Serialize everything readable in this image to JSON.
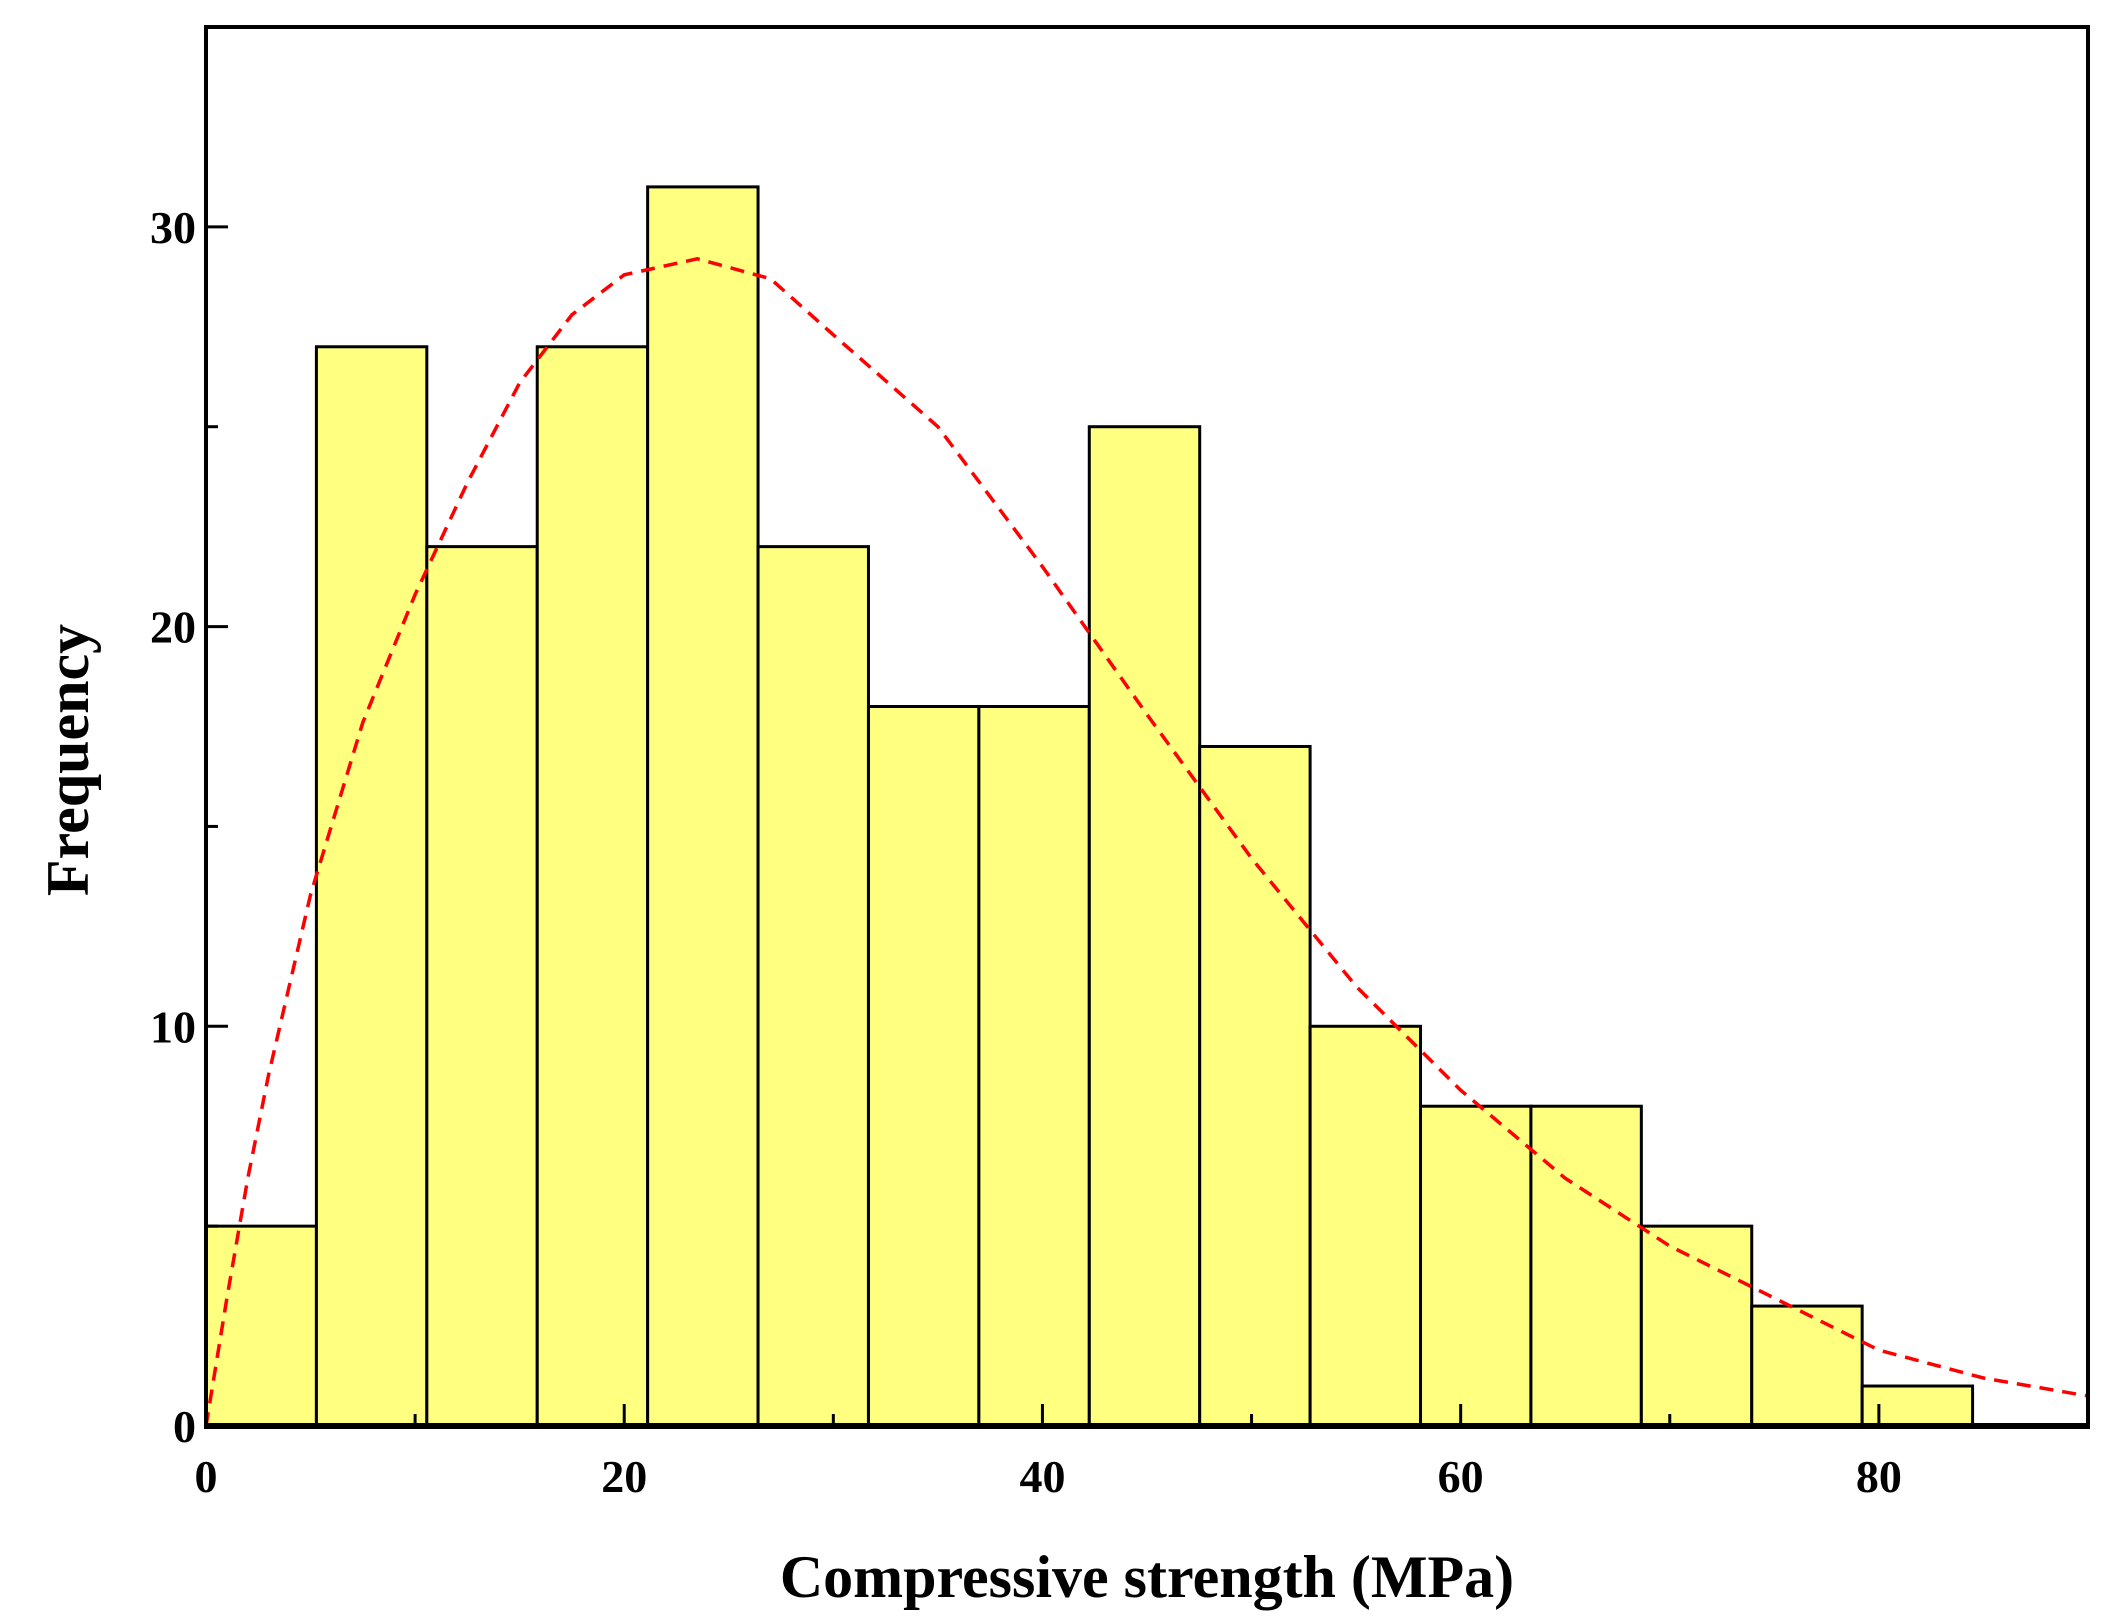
{
  "chart_data": {
    "type": "bar",
    "subtype": "histogram-with-fit",
    "xlabel": "Compressive strength (MPa)",
    "ylabel": "Frequency",
    "xlim": [
      0,
      90
    ],
    "ylim": [
      0,
      35
    ],
    "x_ticks": [
      0,
      20,
      40,
      60,
      80
    ],
    "x_tick_labels": [
      "0",
      "20",
      "40",
      "60",
      "80"
    ],
    "y_ticks": [
      0,
      10,
      20,
      30
    ],
    "y_tick_labels": [
      "0",
      "10",
      "20",
      "30"
    ],
    "bin_start": 0,
    "bin_width": 5.28,
    "values": [
      5,
      27,
      22,
      27,
      31,
      22,
      18,
      18,
      25,
      17,
      10,
      8,
      8,
      5,
      3,
      1
    ],
    "bar_color": "#FFFF80",
    "fit_curve": {
      "color": "#FF0000",
      "style": "dashed",
      "x": [
        0,
        1,
        2,
        3,
        5,
        7.5,
        10,
        12.5,
        15,
        17.5,
        20,
        23.5,
        27,
        30,
        35,
        40,
        45,
        50,
        55,
        60,
        65,
        70,
        75,
        80,
        85,
        90
      ],
      "y": [
        0,
        3.2,
        6.2,
        8.8,
        13.3,
        17.6,
        20.8,
        23.6,
        26.1,
        27.8,
        28.8,
        29.2,
        28.7,
        27.3,
        25.0,
        21.5,
        17.8,
        14.2,
        11.0,
        8.4,
        6.2,
        4.5,
        3.2,
        1.9,
        1.2,
        0.75
      ]
    },
    "grid": false,
    "legend": "none"
  }
}
